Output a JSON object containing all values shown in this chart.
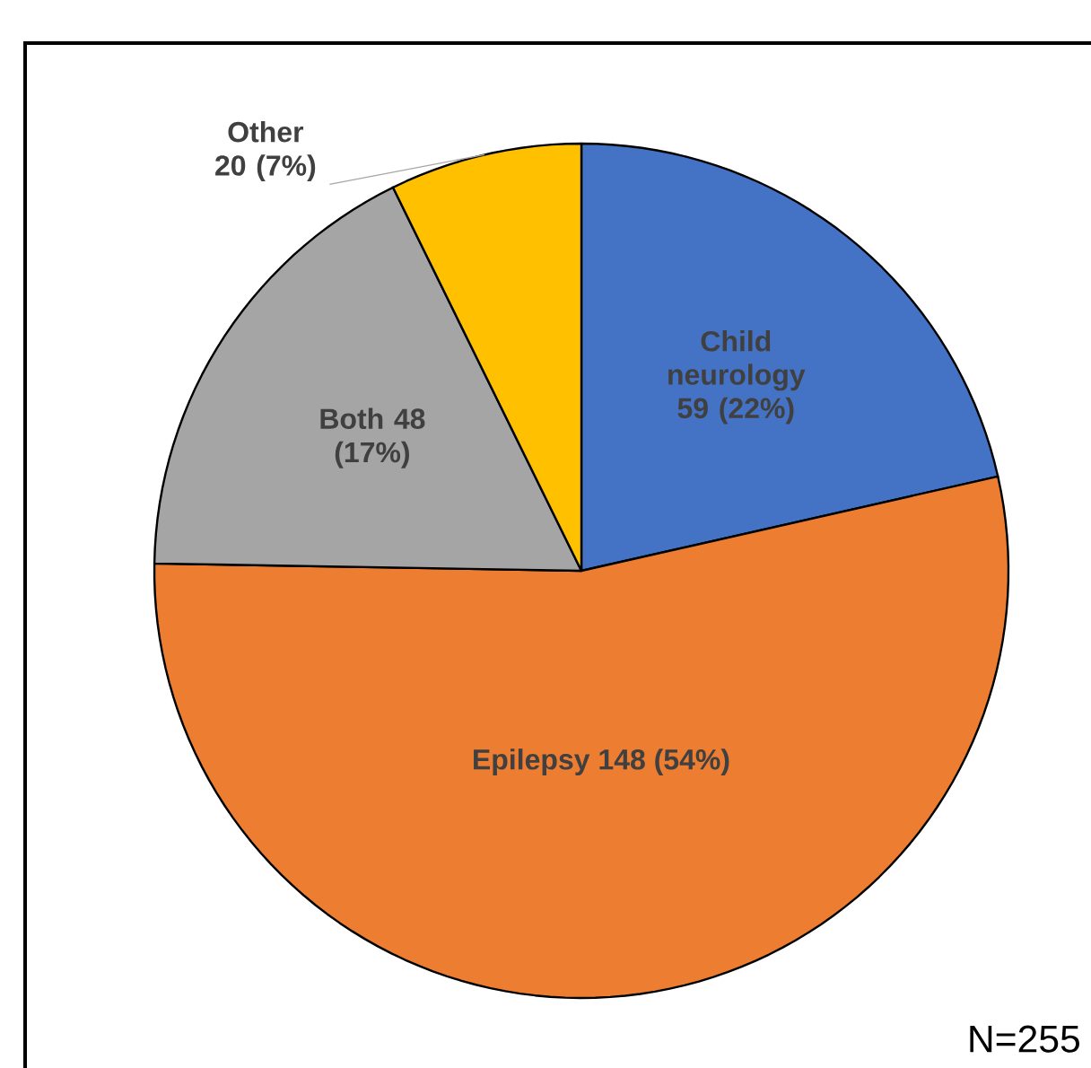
{
  "chart_data": {
    "type": "pie",
    "categories": [
      "Child neurology",
      "Epilepsy",
      "Both",
      "Other"
    ],
    "values": [
      59,
      148,
      48,
      20
    ],
    "colors": [
      "#4472c4",
      "#ed7d31",
      "#a5a5a5",
      "#ffc000"
    ],
    "value_labels": [
      "59 (22%)",
      "148 (54%)",
      "48 (17%)",
      "20 (7%)"
    ],
    "annotations": [
      "N=255"
    ]
  }
}
